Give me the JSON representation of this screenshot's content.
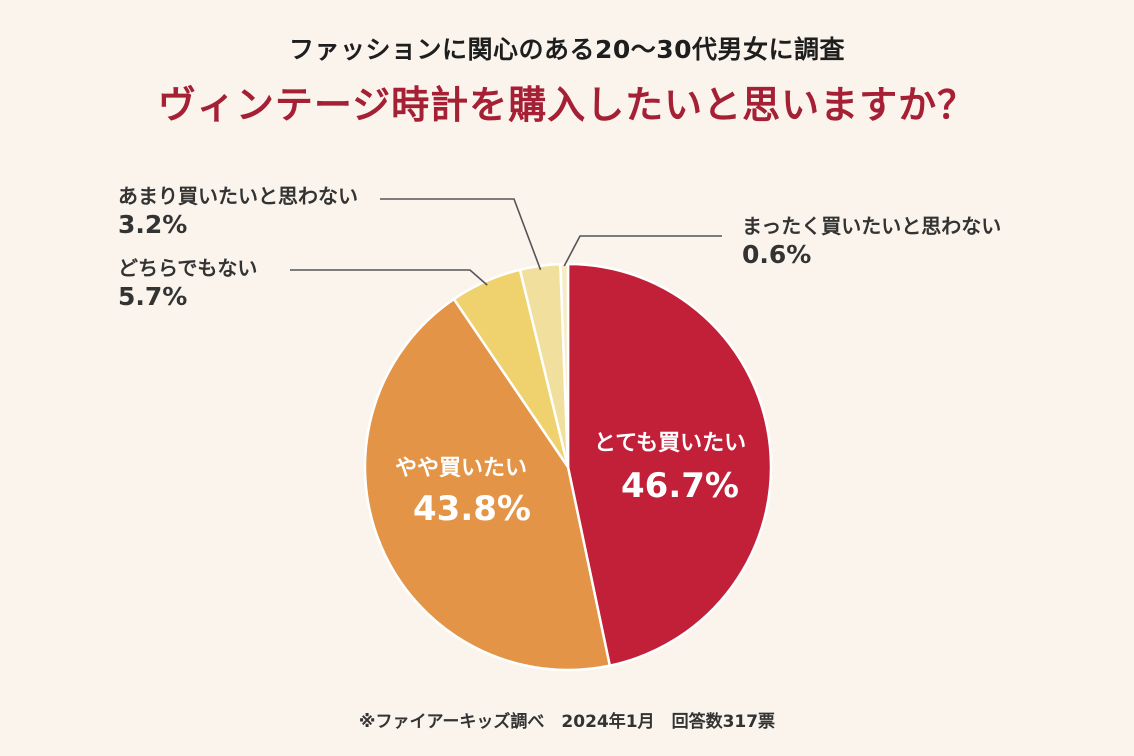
{
  "header": {
    "subtitle": "ファッションに関心のある20〜30代男女に調査",
    "title": "ヴィンテージ時計を購入したいと思いますか？"
  },
  "footnote": "※ファイアーキッズ調べ　2024年1月　回答数317票",
  "chart_data": {
    "type": "pie",
    "title": "ヴィンテージ時計を購入したいと思いますか？",
    "subtitle": "ファッションに関心のある20〜30代男女に調査",
    "start": "12 o'clock",
    "direction": "clockwise",
    "slices": [
      {
        "label": "とても買いたい",
        "value": 46.7,
        "value_label": "46.7%",
        "color": "#c21f38",
        "label_placement": "inside"
      },
      {
        "label": "やや買いたい",
        "value": 43.8,
        "value_label": "43.8%",
        "color": "#e39446",
        "label_placement": "inside"
      },
      {
        "label": "どちらでもない",
        "value": 5.7,
        "value_label": "5.7%",
        "color": "#efd26e",
        "label_placement": "outside-left"
      },
      {
        "label": "あまり買いたいと思わない",
        "value": 3.2,
        "value_label": "3.2%",
        "color": "#f1df9d",
        "label_placement": "outside-left"
      },
      {
        "label": "まったく買いたいと思わない",
        "value": 0.6,
        "value_label": "0.6%",
        "color": "#f6ecc5",
        "label_placement": "outside-right"
      }
    ]
  }
}
